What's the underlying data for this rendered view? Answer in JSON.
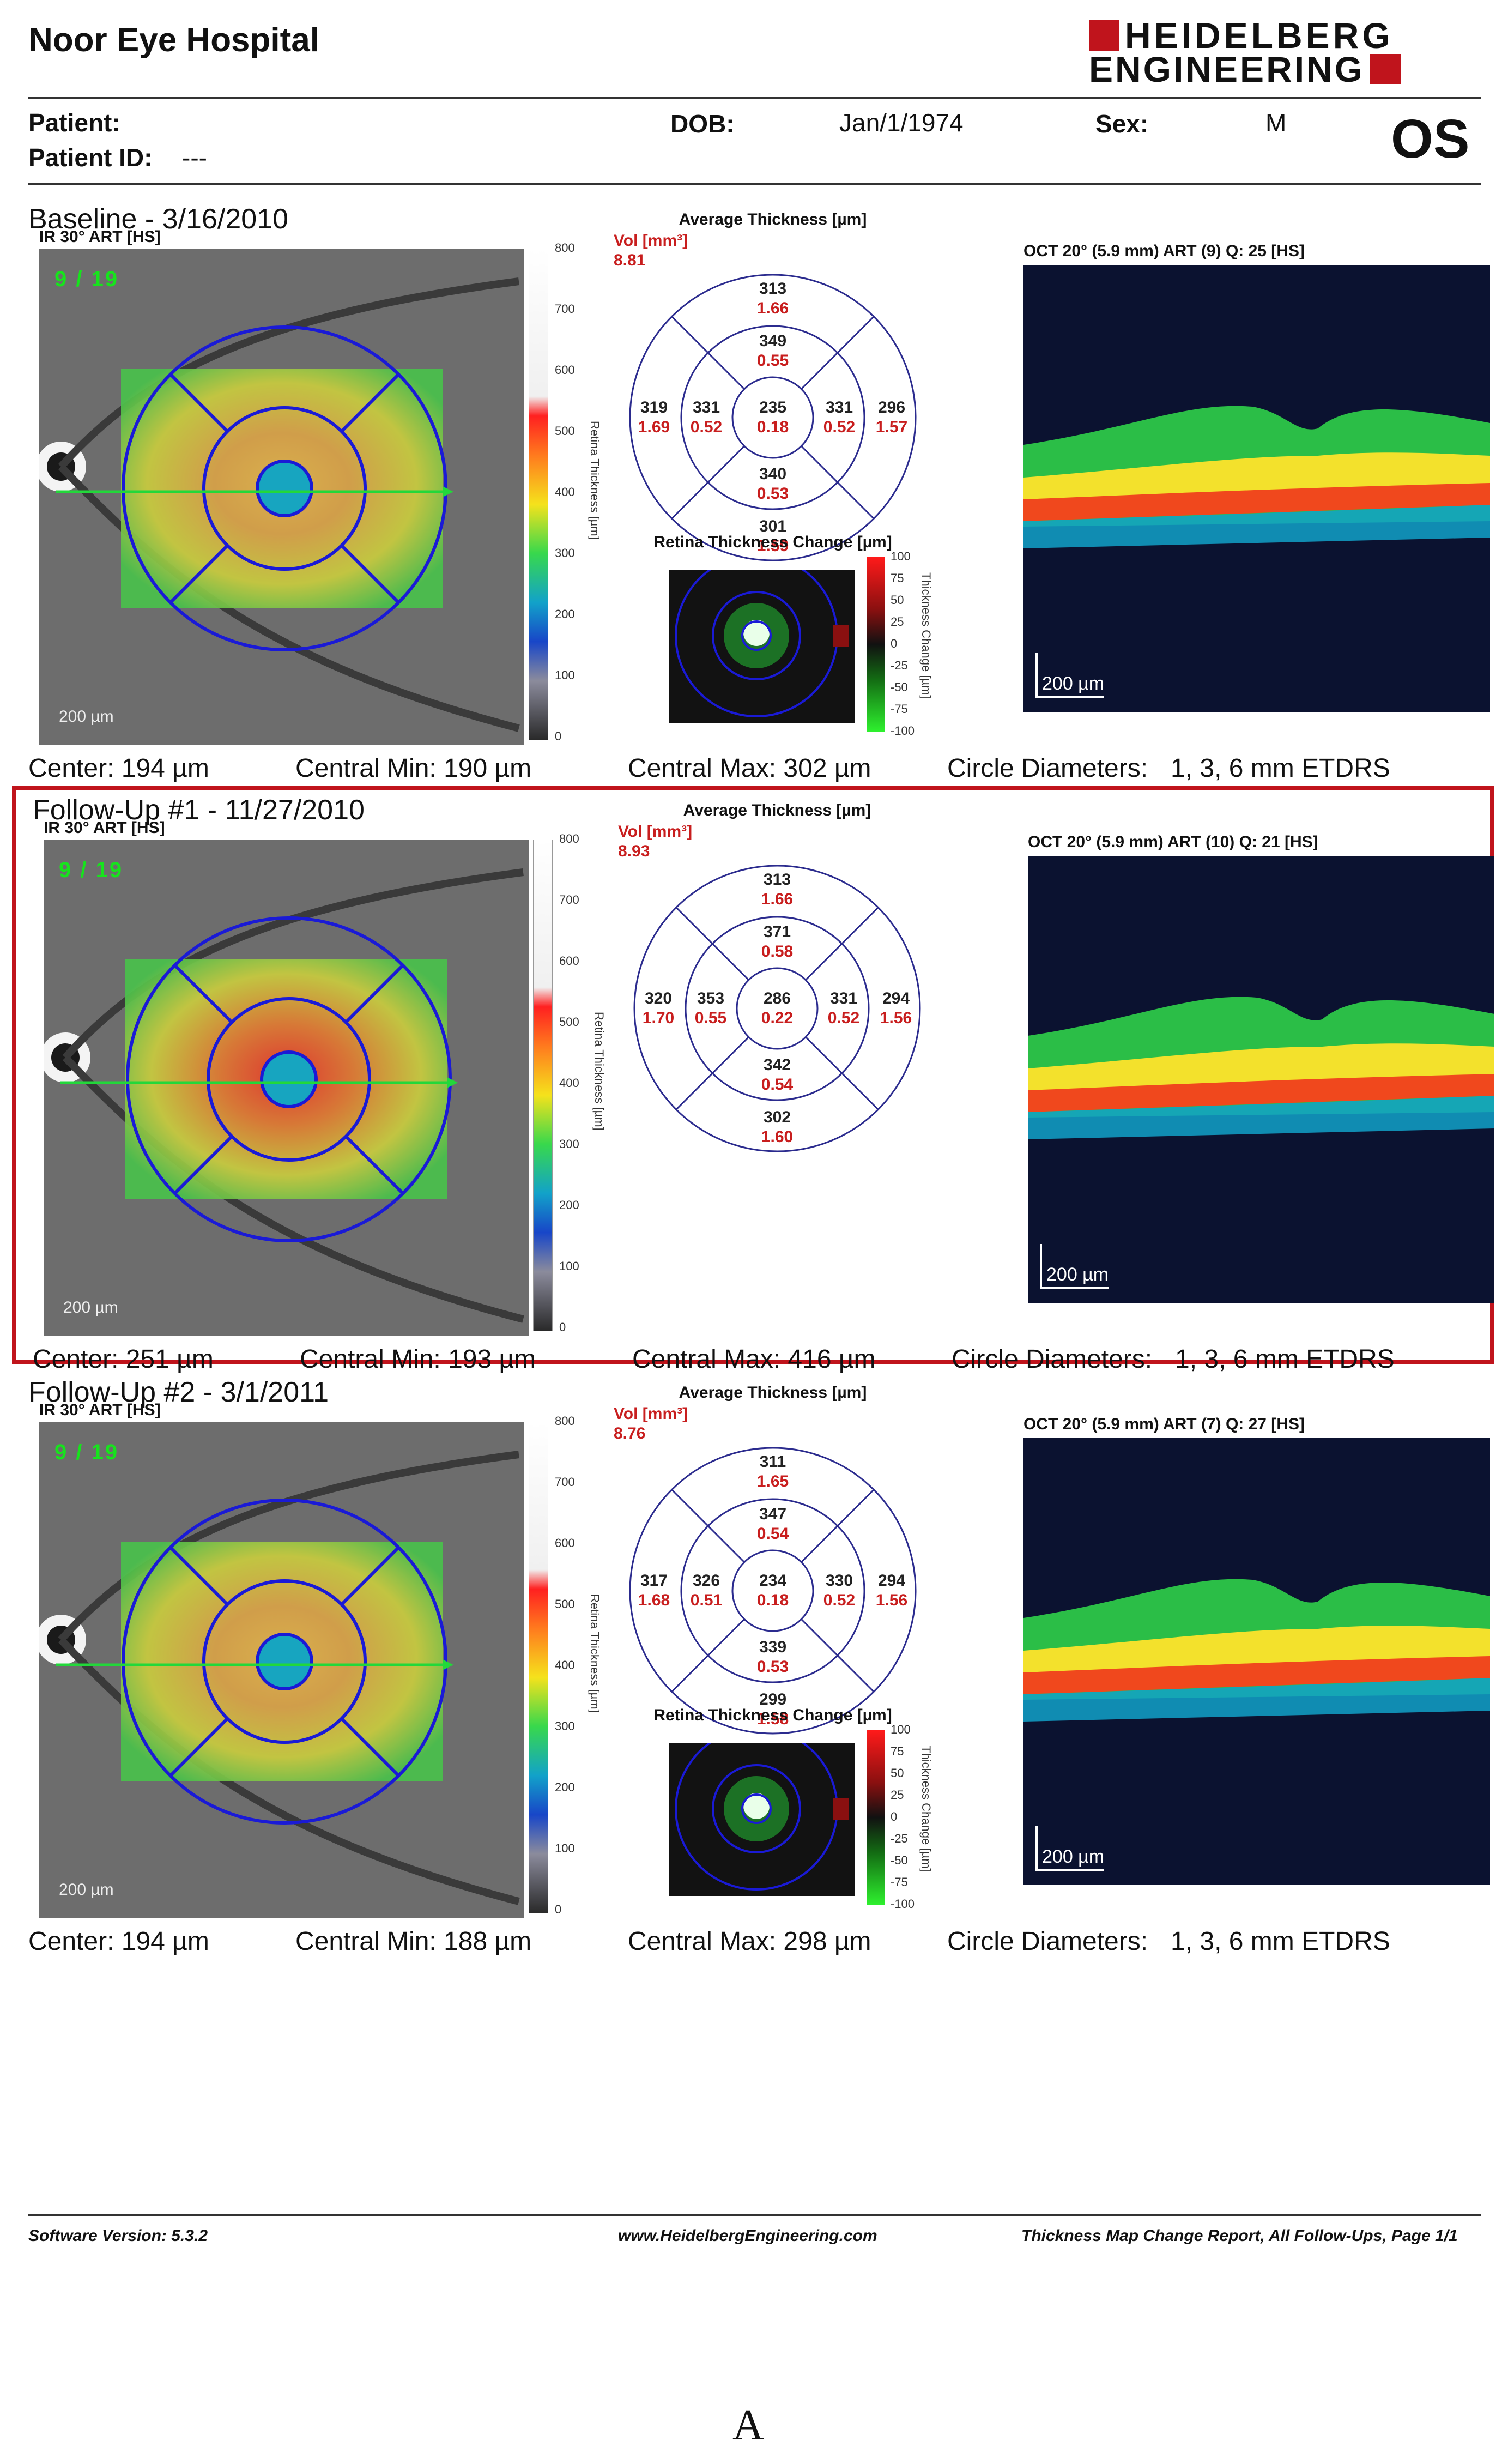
{
  "header": {
    "hospital": "Noor Eye Hospital",
    "logo_line1": "HEIDELBERG",
    "logo_line2": "ENGINEERING",
    "patient_label": "Patient:",
    "patient_value": "",
    "patient_id_label": "Patient ID:",
    "patient_id_value": "---",
    "dob_label": "DOB:",
    "dob_value": "Jan/1/1974",
    "sex_label": "Sex:",
    "sex_value": "M",
    "eye": "OS"
  },
  "common": {
    "ir_title": "IR 30° ART [HS]",
    "counter": "9 / 19",
    "fundus_scale": "200 µm",
    "oct_scale": "200 µm",
    "thickness_axis_label": "Retina Thickness [µm]",
    "thickness_ticks": [
      "800",
      "700",
      "600",
      "500",
      "400",
      "300",
      "200",
      "100",
      "0"
    ],
    "avg_title": "Average Thickness [µm]",
    "vol_label": "Vol [mm³]",
    "change_title": "Retina Thickness Change [µm]",
    "change_axis_label": "Thickness Change [µm]",
    "change_ticks": [
      "100",
      "75",
      "50",
      "25",
      "0",
      "-25",
      "-50",
      "-75",
      "-100"
    ],
    "circle_label": "Circle Diameters:",
    "circle_value": "1, 3, 6 mm ETDRS"
  },
  "sections": [
    {
      "title": "Baseline - 3/16/2010",
      "vol": "8.81",
      "zones": {
        "sup_outer": [
          "313",
          "1.66"
        ],
        "sup_inner": [
          "349",
          "0.55"
        ],
        "temp_outer": [
          "319",
          "1.69"
        ],
        "temp_inner": [
          "331",
          "0.52"
        ],
        "center": [
          "235",
          "0.18"
        ],
        "nas_inner": [
          "331",
          "0.52"
        ],
        "nas_outer": [
          "296",
          "1.57"
        ],
        "inf_inner": [
          "340",
          "0.53"
        ],
        "inf_outer": [
          "301",
          "1.59"
        ]
      },
      "oct_title": "OCT 20° (5.9 mm) ART (9) Q: 25 [HS]",
      "center": "Center: 194 µm",
      "central_min": "Central Min: 190 µm",
      "central_max": "Central Max: 302 µm",
      "has_change": true,
      "highlighted": false
    },
    {
      "title": "Follow-Up #1 - 11/27/2010",
      "vol": "8.93",
      "zones": {
        "sup_outer": [
          "313",
          "1.66"
        ],
        "sup_inner": [
          "371",
          "0.58"
        ],
        "temp_outer": [
          "320",
          "1.70"
        ],
        "temp_inner": [
          "353",
          "0.55"
        ],
        "center": [
          "286",
          "0.22"
        ],
        "nas_inner": [
          "331",
          "0.52"
        ],
        "nas_outer": [
          "294",
          "1.56"
        ],
        "inf_inner": [
          "342",
          "0.54"
        ],
        "inf_outer": [
          "302",
          "1.60"
        ]
      },
      "oct_title": "OCT 20° (5.9 mm) ART (10) Q: 21 [HS]",
      "center": "Center: 251 µm",
      "central_min": "Central Min: 193 µm",
      "central_max": "Central Max: 416 µm",
      "has_change": false,
      "highlighted": true
    },
    {
      "title": "Follow-Up #2 - 3/1/2011",
      "vol": "8.76",
      "zones": {
        "sup_outer": [
          "311",
          "1.65"
        ],
        "sup_inner": [
          "347",
          "0.54"
        ],
        "temp_outer": [
          "317",
          "1.68"
        ],
        "temp_inner": [
          "326",
          "0.51"
        ],
        "center": [
          "234",
          "0.18"
        ],
        "nas_inner": [
          "330",
          "0.52"
        ],
        "nas_outer": [
          "294",
          "1.56"
        ],
        "inf_inner": [
          "339",
          "0.53"
        ],
        "inf_outer": [
          "299",
          "1.58"
        ]
      },
      "oct_title": "OCT 20° (5.9 mm) ART (7) Q: 27 [HS]",
      "center": "Center: 194 µm",
      "central_min": "Central Min: 188 µm",
      "central_max": "Central Max: 298 µm",
      "has_change": true,
      "highlighted": false
    }
  ],
  "footer": {
    "software": "Software Version: 5.3.2",
    "url": "www.HeidelbergEngineering.com",
    "report": "Thickness Map Change Report, All Follow-Ups, Page 1/1"
  },
  "figure_label": "A"
}
